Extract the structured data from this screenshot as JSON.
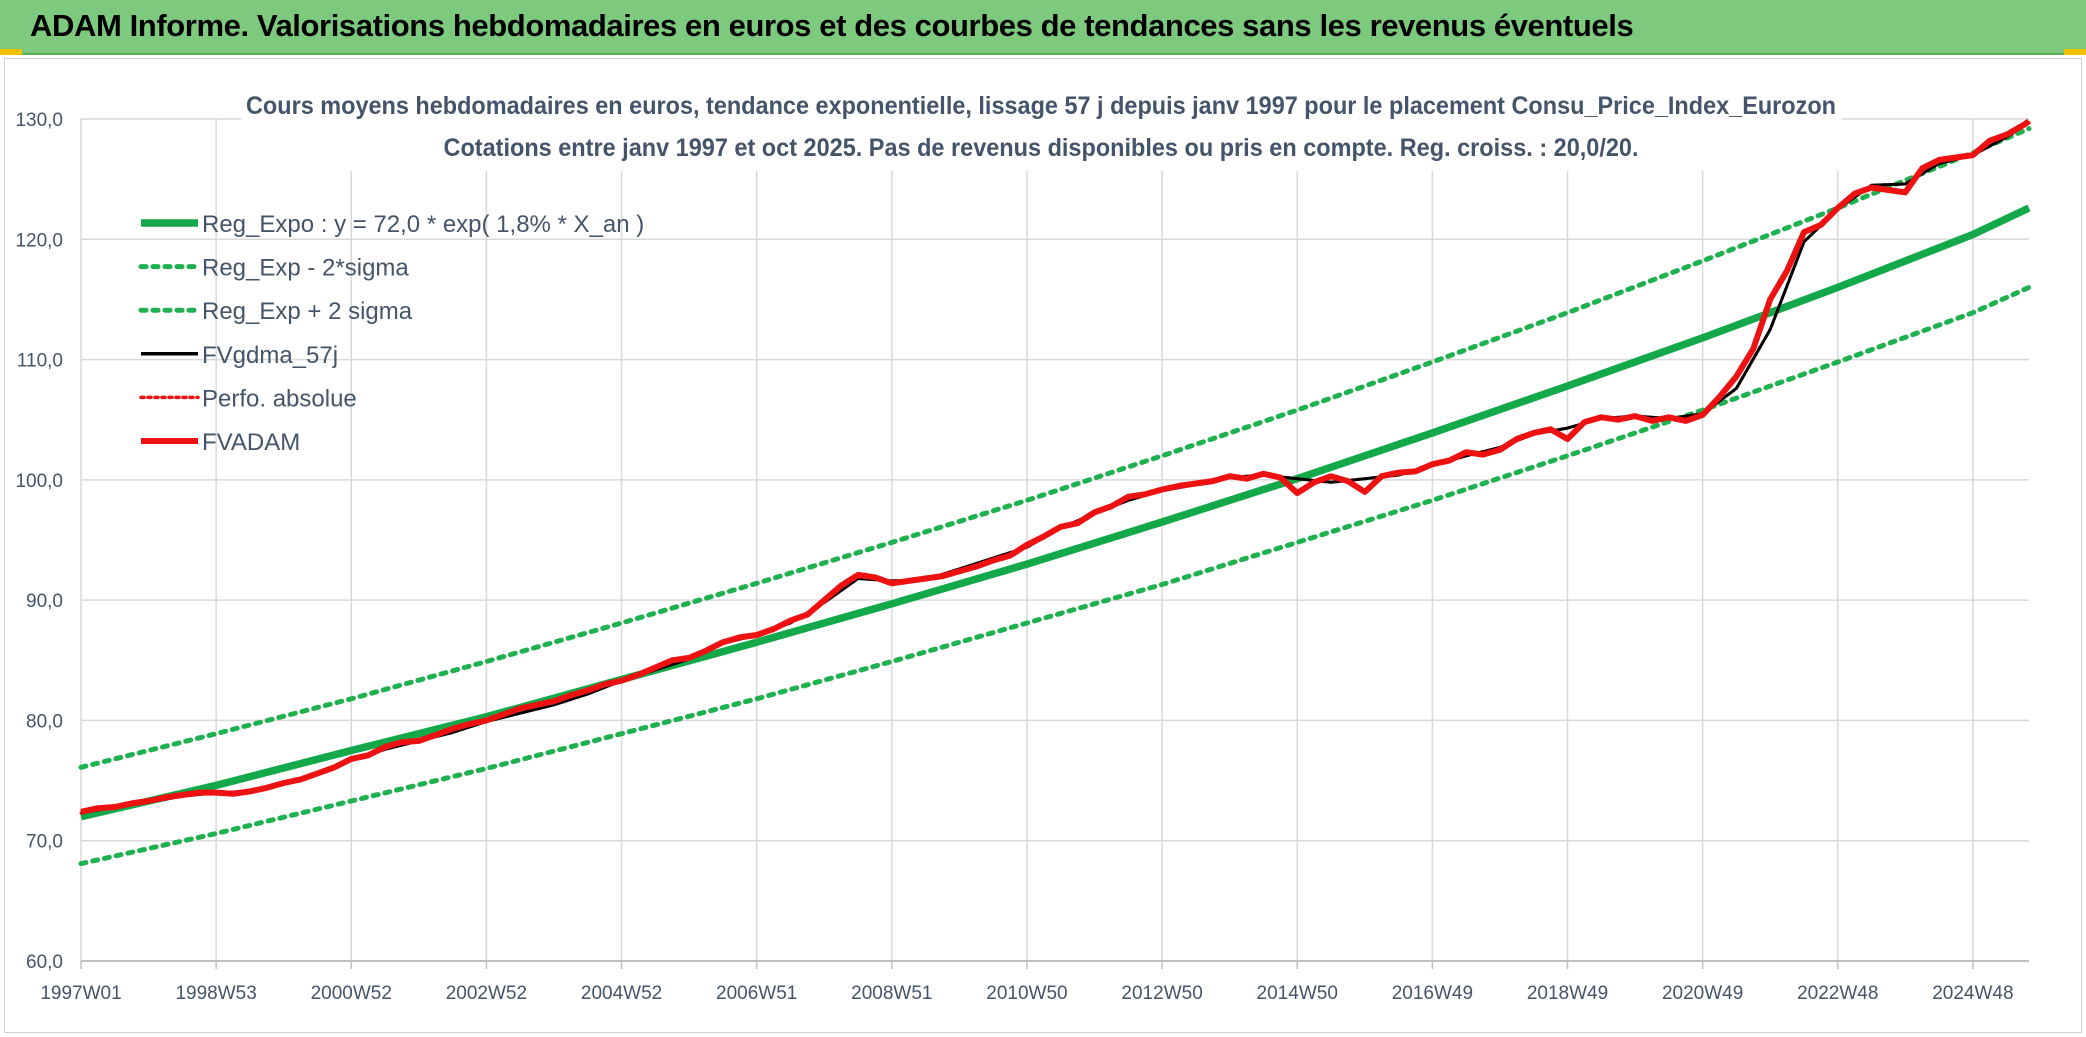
{
  "banner": {
    "title": "ADAM Informe. Valorisations hebdomadaires en euros et des courbes de tendances sans les revenus éventuels"
  },
  "colors": {
    "banner_bg": "#7dc97d",
    "corner_accent": "#f2c200",
    "trend_green": "#13a84a",
    "band_green": "#1fb14f",
    "fv_red": "#ee1111",
    "gdma_black": "#000000",
    "grid": "#d9d9d9",
    "text": "#44546a"
  },
  "chart_data": {
    "type": "line",
    "title": "Cours moyens hebdomadaires en euros, tendance exponentielle, lissage 57 j depuis janv 1997 pour le placement Consu_Price_Index_Eurozon",
    "subtitle": "Cotations entre janv 1997 et oct 2025. Pas de revenus disponibles ou pris en compte. Reg. croiss. : 20,0/20.",
    "xlabel": "",
    "ylabel": "",
    "x_range": [
      1997.0,
      2025.83
    ],
    "ylim": [
      60,
      130
    ],
    "y_ticks": [
      60,
      70,
      80,
      90,
      100,
      110,
      120,
      130
    ],
    "y_tick_labels": [
      "60,0",
      "70,0",
      "80,0",
      "90,0",
      "100,0",
      "110,0",
      "120,0",
      "130,0"
    ],
    "x_ticks": [
      {
        "x": 1997.0,
        "label": "1997W01"
      },
      {
        "x": 1999.0,
        "label": "1998W53"
      },
      {
        "x": 2001.0,
        "label": "2000W52"
      },
      {
        "x": 2003.0,
        "label": "2002W52"
      },
      {
        "x": 2005.0,
        "label": "2004W52"
      },
      {
        "x": 2007.0,
        "label": "2006W51"
      },
      {
        "x": 2009.0,
        "label": "2008W51"
      },
      {
        "x": 2011.0,
        "label": "2010W50"
      },
      {
        "x": 2013.0,
        "label": "2012W50"
      },
      {
        "x": 2015.0,
        "label": "2014W50"
      },
      {
        "x": 2017.0,
        "label": "2016W49"
      },
      {
        "x": 2019.0,
        "label": "2018W49"
      },
      {
        "x": 2021.0,
        "label": "2020W49"
      },
      {
        "x": 2023.0,
        "label": "2022W48"
      },
      {
        "x": 2025.0,
        "label": "2024W48"
      }
    ],
    "grid": true,
    "legend_position": "top-left",
    "series": [
      {
        "name": "Reg_Expo : y = 72,0 * exp( 1,8% *  X_an )",
        "style": "solid-thick",
        "color": "#13a84a",
        "x": [
          1997.0,
          1999.0,
          2001.0,
          2003.0,
          2005.0,
          2007.0,
          2009.0,
          2011.0,
          2013.0,
          2015.0,
          2017.0,
          2019.0,
          2021.0,
          2023.0,
          2025.0,
          2025.83
        ],
        "y": [
          72.0,
          74.6,
          77.5,
          80.3,
          83.4,
          86.5,
          89.7,
          93.0,
          96.5,
          100.1,
          103.9,
          107.8,
          111.8,
          116.0,
          120.4,
          122.6
        ]
      },
      {
        "name": "Reg_Exp - 2*sigma",
        "style": "dotted",
        "color": "#1fb14f",
        "x": [
          1997.0,
          1999.0,
          2001.0,
          2003.0,
          2005.0,
          2007.0,
          2009.0,
          2011.0,
          2013.0,
          2015.0,
          2017.0,
          2019.0,
          2021.0,
          2023.0,
          2025.0,
          2025.83
        ],
        "y": [
          68.1,
          70.6,
          73.3,
          76.0,
          78.9,
          81.8,
          84.9,
          88.1,
          91.3,
          94.8,
          98.3,
          102.0,
          105.8,
          109.8,
          113.9,
          116.0
        ]
      },
      {
        "name": "Reg_Exp + 2 sigma",
        "style": "dotted",
        "color": "#1fb14f",
        "x": [
          1997.0,
          1999.0,
          2001.0,
          2003.0,
          2005.0,
          2007.0,
          2009.0,
          2011.0,
          2013.0,
          2015.0,
          2017.0,
          2019.0,
          2021.0,
          2023.0,
          2025.0,
          2025.83
        ],
        "y": [
          76.1,
          78.9,
          81.8,
          84.9,
          88.1,
          91.4,
          94.8,
          98.3,
          102.0,
          105.8,
          109.8,
          113.9,
          118.2,
          122.6,
          127.2,
          129.2
        ]
      },
      {
        "name": "FVgdma_57j",
        "style": "solid",
        "color": "#000000",
        "x": [
          1997.0,
          1997.5,
          1998.0,
          1998.5,
          1999.0,
          1999.5,
          2000.0,
          2000.5,
          2001.0,
          2001.5,
          2002.0,
          2002.5,
          2003.0,
          2003.5,
          2004.0,
          2004.5,
          2005.0,
          2005.5,
          2006.0,
          2006.5,
          2007.0,
          2007.5,
          2008.0,
          2008.5,
          2009.0,
          2009.5,
          2010.0,
          2010.5,
          2011.0,
          2011.5,
          2012.0,
          2012.5,
          2013.0,
          2013.5,
          2014.0,
          2014.5,
          2015.0,
          2015.5,
          2016.0,
          2016.5,
          2017.0,
          2017.5,
          2018.0,
          2018.5,
          2019.0,
          2019.5,
          2020.0,
          2020.5,
          2021.0,
          2021.5,
          2022.0,
          2022.5,
          2023.0,
          2023.5,
          2024.0,
          2024.5,
          2025.0,
          2025.5,
          2025.83
        ],
        "y": [
          72.3,
          72.8,
          73.2,
          73.7,
          74.0,
          74.1,
          74.7,
          75.6,
          76.7,
          77.6,
          78.3,
          79.0,
          79.9,
          80.6,
          81.3,
          82.2,
          83.3,
          84.2,
          85.1,
          86.4,
          87.1,
          88.1,
          89.8,
          91.8,
          91.6,
          91.7,
          92.6,
          93.5,
          94.4,
          96.0,
          97.2,
          98.3,
          99.1,
          99.6,
          100.2,
          100.4,
          100.1,
          99.8,
          100.1,
          100.4,
          101.2,
          102.0,
          102.7,
          103.8,
          104.3,
          105.1,
          105.3,
          105.1,
          105.5,
          107.6,
          112.5,
          119.8,
          122.5,
          124.5,
          124.6,
          126.3,
          127.0,
          128.5,
          129.7
        ]
      },
      {
        "name": "Perfo. absolue",
        "style": "dotted",
        "color": "#ee1111",
        "x": [
          1997.0,
          1997.5,
          1998.0,
          1998.5,
          1999.0,
          1999.5,
          2000.0,
          2000.5,
          2001.0,
          2001.5,
          2002.0,
          2002.5,
          2003.0,
          2003.5,
          2004.0,
          2004.5,
          2005.0,
          2005.5,
          2006.0,
          2006.5,
          2007.0,
          2007.5,
          2008.0,
          2008.5,
          2009.0,
          2009.5,
          2010.0,
          2010.5,
          2011.0,
          2011.5,
          2012.0,
          2012.5,
          2013.0,
          2013.5,
          2014.0,
          2014.5,
          2015.0,
          2015.5,
          2016.0,
          2016.5,
          2017.0,
          2017.5,
          2018.0,
          2018.5,
          2019.0,
          2019.5,
          2020.0,
          2020.5,
          2021.0,
          2021.5,
          2022.0,
          2022.5,
          2023.0,
          2023.5,
          2024.0,
          2024.5,
          2025.0,
          2025.5,
          2025.83
        ],
        "y": [
          72.3,
          72.8,
          73.2,
          73.7,
          74.0,
          74.1,
          74.7,
          75.6,
          76.7,
          77.6,
          78.3,
          79.0,
          79.9,
          80.6,
          81.3,
          82.2,
          83.3,
          84.2,
          85.1,
          86.4,
          87.1,
          88.1,
          89.8,
          91.8,
          91.6,
          91.7,
          92.6,
          93.5,
          94.4,
          96.0,
          97.2,
          98.3,
          99.1,
          99.6,
          100.2,
          100.4,
          100.1,
          99.8,
          100.1,
          100.4,
          101.2,
          102.0,
          102.7,
          103.8,
          104.3,
          105.1,
          105.3,
          105.1,
          105.5,
          107.6,
          112.5,
          119.8,
          122.5,
          124.5,
          124.6,
          126.3,
          127.0,
          128.5,
          129.7
        ]
      },
      {
        "name": "FVADAM",
        "style": "solid-thick",
        "color": "#ee1111",
        "x": [
          1997.0,
          1997.25,
          1997.5,
          1997.75,
          1998.0,
          1998.25,
          1998.5,
          1998.75,
          1999.0,
          1999.25,
          1999.5,
          1999.75,
          2000.0,
          2000.25,
          2000.5,
          2000.75,
          2001.0,
          2001.25,
          2001.5,
          2001.75,
          2002.0,
          2002.25,
          2002.5,
          2002.75,
          2003.0,
          2003.25,
          2003.5,
          2003.75,
          2004.0,
          2004.25,
          2004.5,
          2004.75,
          2005.0,
          2005.25,
          2005.5,
          2005.75,
          2006.0,
          2006.25,
          2006.5,
          2006.75,
          2007.0,
          2007.25,
          2007.5,
          2007.75,
          2008.0,
          2008.25,
          2008.5,
          2008.75,
          2009.0,
          2009.25,
          2009.5,
          2009.75,
          2010.0,
          2010.25,
          2010.5,
          2010.75,
          2011.0,
          2011.25,
          2011.5,
          2011.75,
          2012.0,
          2012.25,
          2012.5,
          2012.75,
          2013.0,
          2013.25,
          2013.5,
          2013.75,
          2014.0,
          2014.25,
          2014.5,
          2014.75,
          2015.0,
          2015.25,
          2015.5,
          2015.75,
          2016.0,
          2016.25,
          2016.5,
          2016.75,
          2017.0,
          2017.25,
          2017.5,
          2017.75,
          2018.0,
          2018.25,
          2018.5,
          2018.75,
          2019.0,
          2019.25,
          2019.5,
          2019.75,
          2020.0,
          2020.25,
          2020.5,
          2020.75,
          2021.0,
          2021.25,
          2021.5,
          2021.75,
          2022.0,
          2022.25,
          2022.5,
          2022.75,
          2023.0,
          2023.25,
          2023.5,
          2023.75,
          2024.0,
          2024.25,
          2024.5,
          2024.75,
          2025.0,
          2025.25,
          2025.5,
          2025.75,
          2025.83
        ],
        "y": [
          72.4,
          72.7,
          72.8,
          73.1,
          73.3,
          73.6,
          73.8,
          74.0,
          74.0,
          73.9,
          74.1,
          74.4,
          74.8,
          75.1,
          75.6,
          76.1,
          76.8,
          77.1,
          77.8,
          78.2,
          78.3,
          78.8,
          79.3,
          79.7,
          80.0,
          80.5,
          81.0,
          81.3,
          81.6,
          82.1,
          82.5,
          83.0,
          83.3,
          83.8,
          84.4,
          85.0,
          85.2,
          85.8,
          86.5,
          86.9,
          87.1,
          87.6,
          88.3,
          88.8,
          90.0,
          91.2,
          92.1,
          91.9,
          91.4,
          91.6,
          91.8,
          92.0,
          92.4,
          92.8,
          93.3,
          93.7,
          94.6,
          95.3,
          96.1,
          96.4,
          97.3,
          97.8,
          98.6,
          98.8,
          99.2,
          99.5,
          99.7,
          99.9,
          100.3,
          100.1,
          100.5,
          100.2,
          98.9,
          99.8,
          100.3,
          99.9,
          99.0,
          100.3,
          100.6,
          100.7,
          101.3,
          101.6,
          102.3,
          102.1,
          102.5,
          103.4,
          103.9,
          104.2,
          103.4,
          104.8,
          105.2,
          105.0,
          105.3,
          104.9,
          105.2,
          104.9,
          105.4,
          106.9,
          108.6,
          110.9,
          115.0,
          117.4,
          120.6,
          121.2,
          122.6,
          123.8,
          124.3,
          124.1,
          123.9,
          125.9,
          126.6,
          126.8,
          127.0,
          128.2,
          128.7,
          129.5,
          129.8
        ]
      }
    ]
  }
}
